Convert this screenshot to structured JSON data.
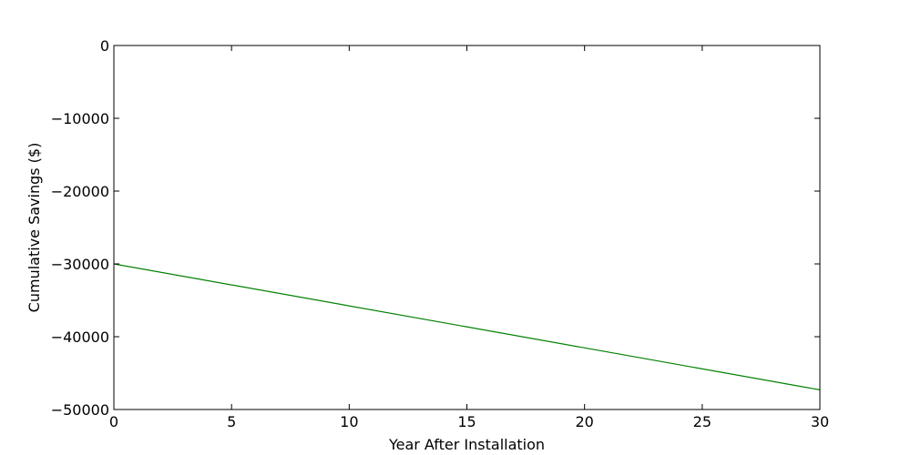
{
  "chart_data": {
    "type": "line",
    "title": "",
    "xlabel": "Year After Installation",
    "ylabel": "Cumulative Savings ($)",
    "xlim": [
      0,
      30
    ],
    "ylim": [
      -50000,
      0
    ],
    "x_ticks": [
      0,
      5,
      10,
      15,
      20,
      25,
      30
    ],
    "x_tick_labels": [
      "0",
      "5",
      "10",
      "15",
      "20",
      "25",
      "30"
    ],
    "y_ticks": [
      0,
      -10000,
      -20000,
      -30000,
      -40000,
      -50000
    ],
    "y_tick_labels": [
      "0",
      "−10000",
      "−20000",
      "−30000",
      "−40000",
      "−50000"
    ],
    "grid": false,
    "legend": "none",
    "series": [
      {
        "color": "#008000",
        "x": [
          0,
          30
        ],
        "y": [
          -30000,
          -47300
        ]
      }
    ]
  }
}
